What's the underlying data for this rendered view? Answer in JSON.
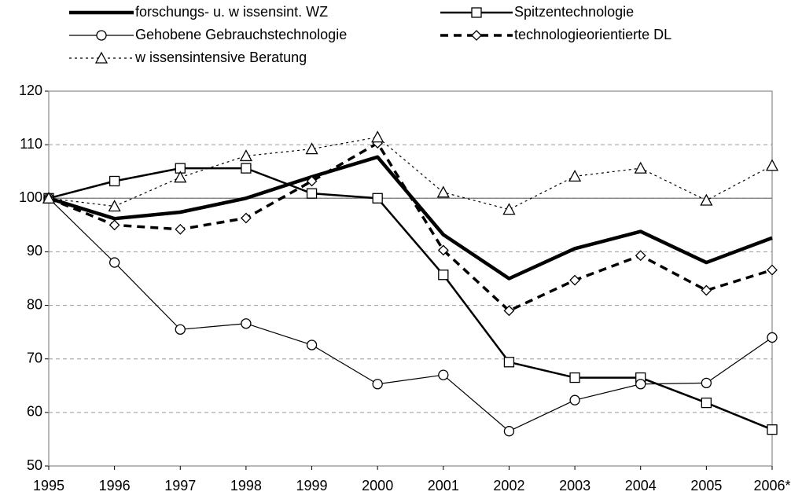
{
  "chart_data": {
    "type": "line",
    "categories": [
      "1995",
      "1996",
      "1997",
      "1998",
      "1999",
      "2000",
      "2001",
      "2002",
      "2003",
      "2004",
      "2005",
      "2006*"
    ],
    "ylim": [
      50,
      120
    ],
    "yticks": [
      50,
      60,
      70,
      80,
      90,
      100,
      110,
      120
    ],
    "grid": true,
    "reference_line": 100,
    "series": [
      {
        "name": "forschungs- u. w issensint. WZ",
        "color": "#000000",
        "line_width": 4.5,
        "dash": "none",
        "marker": "none",
        "values": [
          100,
          96.2,
          97.4,
          100,
          104,
          107.7,
          93.2,
          85,
          90.6,
          93.8,
          88,
          92.6
        ]
      },
      {
        "name": "Spitzentechnologie",
        "color": "#000000",
        "line_width": 2.5,
        "dash": "none",
        "marker": "square",
        "values": [
          100,
          103.2,
          105.6,
          105.6,
          100.9,
          100,
          85.7,
          69.4,
          66.5,
          66.5,
          61.8,
          56.8
        ]
      },
      {
        "name": "Gehobene Gebrauchstechnologie",
        "color": "#000000",
        "line_width": 1.2,
        "dash": "none",
        "marker": "circle",
        "values": [
          100,
          88,
          75.5,
          76.6,
          72.6,
          65.3,
          67,
          56.5,
          62.3,
          65.3,
          65.5,
          74
        ]
      },
      {
        "name": "technologieorientierte DL",
        "color": "#000000",
        "line_width": 3.5,
        "dash": "10 7",
        "marker": "diamond",
        "values": [
          100,
          95,
          94.2,
          96.3,
          103.2,
          110.3,
          90.3,
          79,
          84.7,
          89.3,
          82.8,
          86.6
        ]
      },
      {
        "name": "w issensintensive Beratung",
        "color": "#000000",
        "line_width": 1.2,
        "dash": "3 4",
        "marker": "triangle",
        "values": [
          100,
          98.5,
          103.9,
          107.9,
          109.2,
          111.4,
          101.1,
          97.9,
          104.1,
          105.6,
          99.6,
          106.1
        ]
      }
    ]
  }
}
